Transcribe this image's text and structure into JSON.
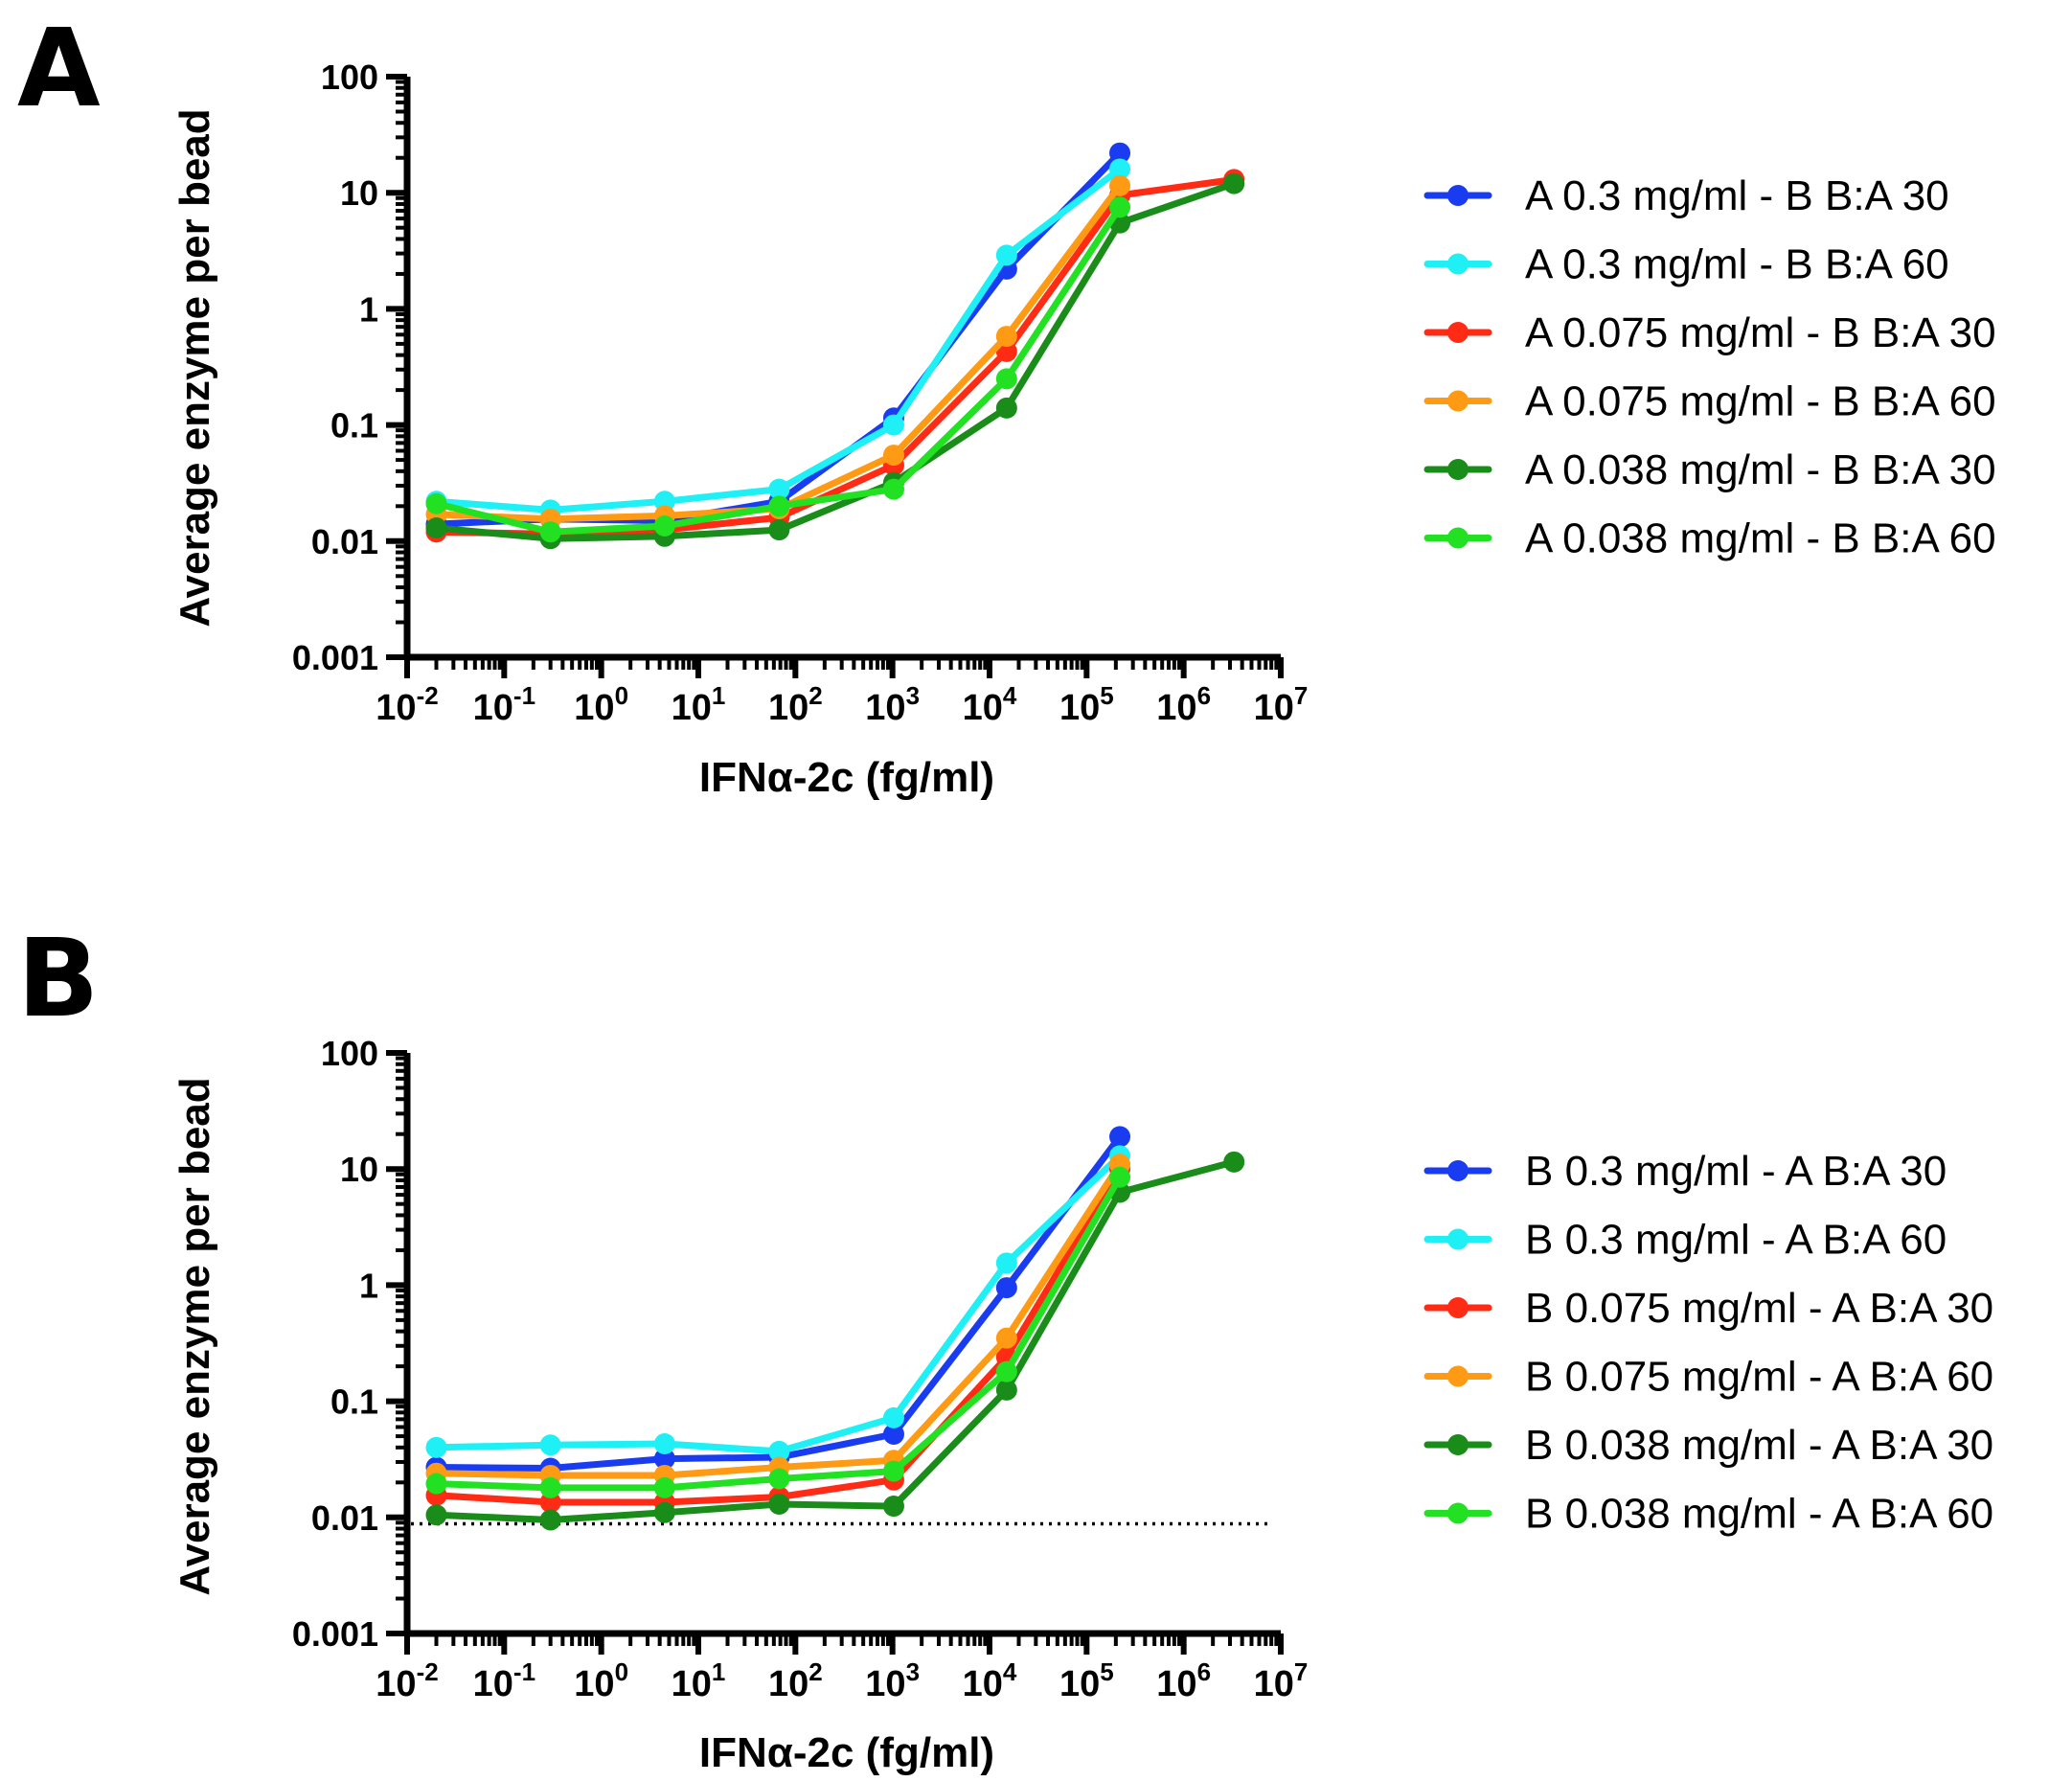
{
  "colors": {
    "blue": "#1a3cf0",
    "cyan": "#1ef0f5",
    "red": "#ff2b14",
    "orange": "#ff9a14",
    "darkgreen": "#1a8c1a",
    "green": "#22e022"
  },
  "chart_data": [
    {
      "panel": "A",
      "type": "line",
      "xscale": "log",
      "yscale": "log",
      "xlabel": "IFNα-2c (fg/ml)",
      "ylabel": "Average enzyme per bead",
      "xlim": [
        0.01,
        10000000
      ],
      "ylim": [
        0.001,
        100
      ],
      "xticks": [
        {
          "base": "10",
          "exp": "-2"
        },
        {
          "base": "10",
          "exp": "-1"
        },
        {
          "base": "10",
          "exp": "0"
        },
        {
          "base": "10",
          "exp": "1"
        },
        {
          "base": "10",
          "exp": "2"
        },
        {
          "base": "10",
          "exp": "3"
        },
        {
          "base": "10",
          "exp": "4"
        },
        {
          "base": "10",
          "exp": "5"
        },
        {
          "base": "10",
          "exp": "6"
        },
        {
          "base": "10",
          "exp": "7"
        }
      ],
      "yticks": [
        "0.001",
        "0.01",
        "0.1",
        "1",
        "10",
        "100"
      ],
      "reference_line": null,
      "series": [
        {
          "name": "A 0.3 mg/ml - B B:A 30",
          "color": "#1a3cf0",
          "x": [
            0.02,
            0.3,
            4.5,
            68,
            1030,
            15000,
            220000
          ],
          "y": [
            0.014,
            0.0155,
            0.015,
            0.022,
            0.115,
            2.2,
            22
          ]
        },
        {
          "name": "A 0.3 mg/ml - B B:A 60",
          "color": "#1ef0f5",
          "x": [
            0.02,
            0.3,
            4.5,
            68,
            1030,
            15000,
            220000
          ],
          "y": [
            0.022,
            0.0185,
            0.022,
            0.028,
            0.1,
            2.9,
            16
          ]
        },
        {
          "name": "A 0.075 mg/ml - B B:A 30",
          "color": "#ff2b14",
          "x": [
            0.02,
            0.3,
            4.5,
            68,
            1030,
            15000,
            220000,
            3300000
          ],
          "y": [
            0.012,
            0.0115,
            0.0125,
            0.016,
            0.045,
            0.43,
            9.5,
            13
          ]
        },
        {
          "name": "A 0.075 mg/ml - B B:A 60",
          "color": "#ff9a14",
          "x": [
            0.02,
            0.3,
            4.5,
            68,
            1030,
            15000,
            220000
          ],
          "y": [
            0.017,
            0.0155,
            0.0165,
            0.019,
            0.055,
            0.58,
            11.5
          ]
        },
        {
          "name": "A 0.038 mg/ml - B B:A 30",
          "color": "#1a8c1a",
          "x": [
            0.02,
            0.3,
            4.5,
            68,
            1030,
            15000,
            220000,
            3300000
          ],
          "y": [
            0.013,
            0.0105,
            0.011,
            0.0125,
            0.032,
            0.14,
            5.5,
            12
          ]
        },
        {
          "name": "A 0.038 mg/ml - B B:A 60",
          "color": "#22e022",
          "x": [
            0.02,
            0.3,
            4.5,
            68,
            1030,
            15000,
            220000
          ],
          "y": [
            0.021,
            0.012,
            0.0135,
            0.02,
            0.028,
            0.25,
            7.5
          ]
        }
      ]
    },
    {
      "panel": "B",
      "type": "line",
      "xscale": "log",
      "yscale": "log",
      "xlabel": "IFNα-2c (fg/ml)",
      "ylabel": "Average enzyme per bead",
      "xlim": [
        0.01,
        10000000
      ],
      "ylim": [
        0.001,
        100
      ],
      "xticks": [
        {
          "base": "10",
          "exp": "-2"
        },
        {
          "base": "10",
          "exp": "-1"
        },
        {
          "base": "10",
          "exp": "0"
        },
        {
          "base": "10",
          "exp": "1"
        },
        {
          "base": "10",
          "exp": "2"
        },
        {
          "base": "10",
          "exp": "3"
        },
        {
          "base": "10",
          "exp": "4"
        },
        {
          "base": "10",
          "exp": "5"
        },
        {
          "base": "10",
          "exp": "6"
        },
        {
          "base": "10",
          "exp": "7"
        }
      ],
      "yticks": [
        "0.001",
        "0.01",
        "0.1",
        "1",
        "10",
        "100"
      ],
      "reference_line": {
        "y": 0.0088,
        "style": "dotted"
      },
      "series": [
        {
          "name": "B 0.3 mg/ml - A B:A 30",
          "color": "#1a3cf0",
          "x": [
            0.02,
            0.3,
            4.5,
            68,
            1030,
            15000,
            220000
          ],
          "y": [
            0.027,
            0.0265,
            0.032,
            0.033,
            0.052,
            0.95,
            19
          ]
        },
        {
          "name": "B 0.3 mg/ml - A B:A 60",
          "color": "#1ef0f5",
          "x": [
            0.02,
            0.3,
            4.5,
            68,
            1030,
            15000,
            220000
          ],
          "y": [
            0.04,
            0.042,
            0.043,
            0.037,
            0.072,
            1.55,
            13
          ]
        },
        {
          "name": "B 0.075 mg/ml - A B:A 30",
          "color": "#ff2b14",
          "x": [
            0.02,
            0.3,
            4.5,
            68,
            1030,
            15000,
            220000
          ],
          "y": [
            0.0155,
            0.0135,
            0.0135,
            0.015,
            0.021,
            0.24,
            10
          ]
        },
        {
          "name": "B 0.075 mg/ml - A B:A 60",
          "color": "#ff9a14",
          "x": [
            0.02,
            0.3,
            4.5,
            68,
            1030,
            15000,
            220000
          ],
          "y": [
            0.024,
            0.023,
            0.023,
            0.027,
            0.031,
            0.35,
            11
          ]
        },
        {
          "name": "B 0.038 mg/ml - A B:A 30",
          "color": "#1a8c1a",
          "x": [
            0.02,
            0.3,
            4.5,
            68,
            1030,
            15000,
            220000,
            3300000
          ],
          "y": [
            0.0105,
            0.0095,
            0.011,
            0.013,
            0.0125,
            0.125,
            6.3,
            11.5
          ]
        },
        {
          "name": "B 0.038 mg/ml - A B:A 60",
          "color": "#22e022",
          "x": [
            0.02,
            0.3,
            4.5,
            68,
            1030,
            15000,
            220000
          ],
          "y": [
            0.0195,
            0.018,
            0.018,
            0.0215,
            0.025,
            0.18,
            8.5
          ]
        }
      ]
    }
  ]
}
